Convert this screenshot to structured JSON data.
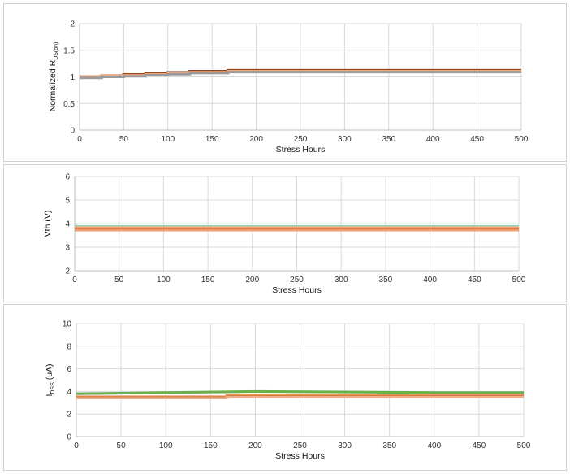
{
  "chart_data": [
    {
      "type": "line",
      "xlabel": "Stress Hours",
      "ylabel_main": "Normalized R",
      "ylabel_sub": "DS(on)",
      "xlim": [
        0,
        500
      ],
      "ylim": [
        0,
        2
      ],
      "xticks": [
        "0",
        "50",
        "100",
        "150",
        "200",
        "250",
        "300",
        "350",
        "400",
        "450",
        "500"
      ],
      "yticks": [
        "0",
        "0.5",
        "1",
        "1.5",
        "2"
      ],
      "grid": true,
      "series": [
        {
          "color": "#7a2e12",
          "x": [
            0,
            25,
            25,
            50,
            50,
            75,
            75,
            100,
            100,
            125,
            125,
            168,
            168,
            500
          ],
          "y": [
            1.0,
            1.0,
            1.02,
            1.02,
            1.04,
            1.04,
            1.06,
            1.06,
            1.08,
            1.08,
            1.1,
            1.1,
            1.12,
            1.12
          ]
        },
        {
          "color": "#e8955a",
          "x": [
            0,
            25,
            25,
            50,
            50,
            75,
            75,
            100,
            100,
            125,
            125,
            168,
            168,
            500
          ],
          "y": [
            1.0,
            1.0,
            1.02,
            1.02,
            1.03,
            1.03,
            1.05,
            1.05,
            1.07,
            1.07,
            1.09,
            1.09,
            1.11,
            1.11
          ]
        },
        {
          "color": "#f0b088",
          "x": [
            0,
            25,
            25,
            50,
            50,
            75,
            75,
            100,
            100,
            125,
            125,
            168,
            168,
            500
          ],
          "y": [
            0.99,
            0.99,
            1.01,
            1.01,
            1.02,
            1.02,
            1.04,
            1.04,
            1.06,
            1.06,
            1.08,
            1.08,
            1.1,
            1.1
          ]
        },
        {
          "color": "#9a9a9a",
          "x": [
            0,
            25,
            25,
            50,
            50,
            75,
            75,
            100,
            100,
            125,
            125,
            168,
            168,
            500
          ],
          "y": [
            0.98,
            0.98,
            1.0,
            1.0,
            1.01,
            1.01,
            1.03,
            1.03,
            1.05,
            1.05,
            1.07,
            1.07,
            1.09,
            1.09
          ]
        }
      ]
    },
    {
      "type": "line",
      "xlabel": "Stress Hours",
      "ylabel_main": "Vth   (V)",
      "xlim": [
        0,
        500
      ],
      "ylim": [
        2,
        6
      ],
      "xticks": [
        "0",
        "50",
        "100",
        "150",
        "200",
        "250",
        "300",
        "350",
        "400",
        "450",
        "500"
      ],
      "yticks": [
        "2",
        "3",
        "4",
        "5",
        "6"
      ],
      "grid": true,
      "series": [
        {
          "color": "#8fd0c0",
          "x": [
            0,
            500
          ],
          "y": [
            3.88,
            3.88
          ]
        },
        {
          "color": "#f2b48c",
          "x": [
            0,
            500
          ],
          "y": [
            3.84,
            3.84
          ]
        },
        {
          "color": "#e8955a",
          "x": [
            0,
            500
          ],
          "y": [
            3.8,
            3.8
          ]
        },
        {
          "color": "#c86a40",
          "x": [
            0,
            500
          ],
          "y": [
            3.76,
            3.76
          ]
        },
        {
          "color": "#f0a070",
          "x": [
            0,
            500
          ],
          "y": [
            3.72,
            3.72
          ]
        }
      ]
    },
    {
      "type": "line",
      "xlabel": "Stress Hours",
      "ylabel_main": "I",
      "ylabel_sub": "DSS",
      "ylabel_unit": "(uA)",
      "xlim": [
        0,
        500
      ],
      "ylim": [
        0,
        10
      ],
      "xticks": [
        "0",
        "50",
        "100",
        "150",
        "200",
        "250",
        "300",
        "350",
        "400",
        "450",
        "500"
      ],
      "yticks": [
        "0",
        "2",
        "4",
        "6",
        "8",
        "10"
      ],
      "grid": true,
      "series": [
        {
          "color": "#6ab04c",
          "x": [
            0,
            100,
            200,
            300,
            400,
            500
          ],
          "y": [
            3.8,
            3.9,
            4.0,
            3.95,
            3.9,
            3.9
          ]
        },
        {
          "color": "#e8955a",
          "x": [
            0,
            168,
            168,
            500
          ],
          "y": [
            3.55,
            3.55,
            3.7,
            3.7
          ]
        },
        {
          "color": "#c86a40",
          "x": [
            0,
            168,
            168,
            500
          ],
          "y": [
            3.45,
            3.45,
            3.55,
            3.55
          ]
        },
        {
          "color": "#f0b088",
          "x": [
            0,
            168,
            168,
            500
          ],
          "y": [
            3.4,
            3.4,
            3.5,
            3.5
          ]
        }
      ]
    }
  ]
}
